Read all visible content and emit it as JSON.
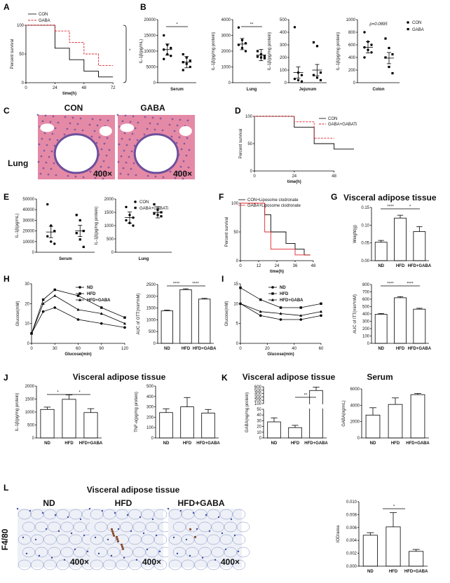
{
  "panels": {
    "A": {
      "letter": "A",
      "xlabel": "time(h)",
      "ylabel": "Percent survival",
      "legend": [
        "CON",
        "GABA"
      ],
      "star": "*",
      "xticks": [
        "0",
        "24",
        "48",
        "72"
      ],
      "yticks": [
        "0",
        "50",
        "100"
      ]
    },
    "B": {
      "letter": "B",
      "legend": [
        "CON",
        "GABA"
      ],
      "sub": [
        {
          "ylabel": "IL-1β(pg/mL)",
          "cat": "Serum",
          "yticks": [
            "0",
            "5000",
            "10000",
            "15000",
            "20000"
          ],
          "sig": "*"
        },
        {
          "ylabel": "IL-1β(pg/mg protein)",
          "cat": "Lung",
          "yticks": [
            "0",
            "1000",
            "2000",
            "3000",
            "4000"
          ],
          "sig": "**"
        },
        {
          "ylabel": "IL-1β(pg/mg protein)",
          "cat": "Jejunum",
          "yticks": [
            "0",
            "100",
            "200",
            "300",
            "400",
            "500"
          ],
          "sig": ""
        },
        {
          "ylabel": "IL-1β(pg/mg protein)",
          "cat": "Colon",
          "yticks": [
            "0",
            "200",
            "400",
            "600",
            "800",
            "1000"
          ],
          "sig": "p=0.0895"
        }
      ]
    },
    "C": {
      "letter": "C",
      "labels": [
        "CON",
        "GABA"
      ],
      "row": "Lung",
      "mag": "400×"
    },
    "D": {
      "letter": "D",
      "xlabel": "time(h)",
      "ylabel": "Percent survival",
      "legend": [
        "CON",
        "GABA+GABATi"
      ],
      "xticks": [
        "0",
        "24",
        "48"
      ],
      "yticks": [
        "0",
        "50",
        "100"
      ]
    },
    "E": {
      "letter": "E",
      "legend": [
        "CON",
        "GABA+GABATi"
      ],
      "sub": [
        {
          "ylabel": "IL-1β(pg/mL)",
          "cat": "Serum",
          "yticks": [
            "0",
            "10000",
            "20000",
            "30000",
            "40000",
            "50000"
          ]
        },
        {
          "ylabel": "IL-1β(pg/mg protein)",
          "cat": "Lung",
          "yticks": [
            "0",
            "500",
            "1000",
            "1500",
            "2000"
          ]
        }
      ]
    },
    "F": {
      "letter": "F",
      "xlabel": "time(h)",
      "ylabel": "Percent survival",
      "legend": [
        "CON+Liposome clodronate",
        "GABA+Liposome clodronate"
      ],
      "xticks": [
        "0",
        "12",
        "24",
        "36",
        "48"
      ],
      "yticks": [
        "0",
        "50",
        "100"
      ]
    },
    "G": {
      "letter": "G",
      "title": "Visceral adipose tissue",
      "ylabel": "Weight(g)",
      "sig": [
        "****",
        "*"
      ],
      "yticks": [
        "0.00",
        "0.05",
        "0.10",
        "0.15"
      ]
    },
    "H": {
      "letter": "H",
      "xlabel": "Glucose(min)",
      "ylabel": "Glucose(mM)",
      "legend": [
        "ND",
        "HFD",
        "HFD+GABA"
      ],
      "xticks": [
        "0",
        "30",
        "60",
        "90",
        "120"
      ],
      "yticks": [
        "0",
        "10",
        "20",
        "30"
      ],
      "bar_ylabel": "AUC of GTT(min*mM)",
      "bar_yticks": [
        "0",
        "500",
        "1000",
        "1500",
        "2000",
        "2500"
      ],
      "sig": [
        "****",
        "****"
      ]
    },
    "I": {
      "letter": "I",
      "xlabel": "Glucose(min)",
      "ylabel": "Glucose(mM)",
      "legend": [
        "ND",
        "HFD",
        "HFD+GABA"
      ],
      "xticks": [
        "0",
        "20",
        "40",
        "60"
      ],
      "yticks": [
        "0",
        "5",
        "10",
        "15"
      ],
      "bar_ylabel": "AUC of ITT(min*mM)",
      "bar_yticks": [
        "0",
        "100",
        "200",
        "300",
        "400",
        "500",
        "600",
        "700",
        "800"
      ],
      "sig": [
        "****",
        "****"
      ]
    },
    "J": {
      "letter": "J",
      "title": "Visceral adipose tissue",
      "sub": [
        {
          "ylabel": "IL-1β(pg/mg protein)",
          "yticks": [
            "0",
            "500",
            "1000",
            "1500",
            "2000"
          ],
          "sig": [
            "*",
            "*"
          ]
        },
        {
          "ylabel": "TNF-α(pg/mg protein)",
          "yticks": [
            "0",
            "100",
            "200",
            "300",
            "400",
            "500"
          ],
          "sig": []
        }
      ]
    },
    "K": {
      "letter": "K",
      "title": "Visceral adipose tissue",
      "title2": "Serum",
      "sub": [
        {
          "ylabel": "GABA(ng/mg protein)",
          "yticks": [
            "0",
            "10",
            "20",
            "30",
            "40",
            "50",
            "100",
            "200",
            "300",
            "400",
            "500",
            "600"
          ],
          "sig": [
            "**"
          ]
        },
        {
          "ylabel": "GABA(ng/mL)",
          "yticks": [
            "0",
            "2000",
            "4000",
            "6000"
          ],
          "sig": []
        }
      ]
    },
    "L": {
      "letter": "L",
      "title": "Visceral adipose tissue",
      "row": "F4/80",
      "labels": [
        "ND",
        "HFD",
        "HFD+GABA"
      ],
      "mag": "400×",
      "ylabel": "IOD/area",
      "yticks": [
        "0.000",
        "0.002",
        "0.004",
        "0.006",
        "0.008",
        "0.010"
      ],
      "sig": "*"
    }
  },
  "groups3": [
    "ND",
    "HFD",
    "HFD+GABA"
  ],
  "colors": {
    "con": "#000000",
    "gaba": "#e0262b",
    "he_pink": "#e58aa6",
    "he_purple": "#6d4f9c",
    "ihc_bg": "#eef0f7",
    "ihc_blue": "#7c8fc3",
    "ihc_brown": "#8a4a2a"
  },
  "chart_data": [
    {
      "type": "line",
      "panel": "A",
      "title": "",
      "xlabel": "time(h)",
      "ylabel": "Percent survival",
      "ylim": [
        0,
        100
      ],
      "xlim": [
        0,
        80
      ],
      "series": [
        {
          "name": "CON",
          "x": [
            0,
            24,
            36,
            48,
            60,
            72
          ],
          "values": [
            100,
            60,
            40,
            20,
            10,
            10
          ]
        },
        {
          "name": "GABA",
          "x": [
            0,
            24,
            36,
            48,
            60,
            72
          ],
          "values": [
            100,
            90,
            70,
            50,
            30,
            30
          ]
        }
      ]
    },
    {
      "type": "scatter",
      "panel": "B-Serum",
      "categories": [
        "CON",
        "GABA"
      ],
      "means": [
        10500,
        6500
      ],
      "ylim": [
        0,
        20000
      ],
      "points": [
        [
          15000,
          12000,
          11000,
          10500,
          9000,
          8500,
          7500
        ],
        [
          9000,
          8000,
          7000,
          6500,
          6000,
          5000,
          4000
        ]
      ]
    },
    {
      "type": "scatter",
      "panel": "B-Lung",
      "categories": [
        "CON",
        "GABA"
      ],
      "means": [
        2450,
        1750
      ],
      "ylim": [
        0,
        4000
      ],
      "points": [
        [
          3500,
          2700,
          2500,
          2400,
          2200,
          2000
        ],
        [
          2000,
          1800,
          1700,
          1650,
          1600,
          1550
        ]
      ]
    },
    {
      "type": "scatter",
      "panel": "B-Jejunum",
      "categories": [
        "CON",
        "GABA"
      ],
      "means": [
        80,
        100
      ],
      "ylim": [
        0,
        500
      ],
      "points": [
        [
          440,
          80,
          60,
          30,
          20,
          10
        ],
        [
          320,
          290,
          80,
          60,
          40,
          20
        ]
      ]
    },
    {
      "type": "scatter",
      "panel": "B-Colon",
      "categories": [
        "CON",
        "GABA"
      ],
      "means": [
        560,
        390
      ],
      "ylim": [
        0,
        1000
      ],
      "points": [
        [
          800,
          650,
          600,
          560,
          520,
          480,
          400
        ],
        [
          700,
          550,
          450,
          400,
          250,
          150
        ]
      ]
    },
    {
      "type": "line",
      "panel": "D",
      "xlabel": "time(h)",
      "ylabel": "Percent survival",
      "ylim": [
        0,
        100
      ],
      "series": [
        {
          "name": "CON",
          "x": [
            0,
            24,
            36,
            48,
            60
          ],
          "values": [
            100,
            80,
            50,
            40,
            40
          ]
        },
        {
          "name": "GABA+GABATi",
          "x": [
            0,
            24,
            36,
            48
          ],
          "values": [
            100,
            90,
            60,
            60
          ]
        }
      ]
    },
    {
      "type": "scatter",
      "panel": "E-Serum",
      "categories": [
        "CON",
        "GABA+GABATi"
      ],
      "means": [
        19000,
        20000
      ],
      "ylim": [
        0,
        50000
      ],
      "points": [
        [
          45000,
          25000,
          20000,
          15000,
          10000,
          8000
        ],
        [
          35000,
          30000,
          20000,
          18000,
          12000,
          5000
        ]
      ]
    },
    {
      "type": "scatter",
      "panel": "E-Lung",
      "categories": [
        "CON",
        "GABA+GABATi"
      ],
      "means": [
        1300,
        1500
      ],
      "ylim": [
        0,
        2000
      ],
      "points": [
        [
          1700,
          1400,
          1300,
          1200,
          1100,
          1000
        ],
        [
          1800,
          1600,
          1500,
          1450,
          1400,
          1350
        ]
      ]
    },
    {
      "type": "line",
      "panel": "F",
      "xlabel": "time(h)",
      "ylabel": "Percent survival",
      "ylim": [
        0,
        100
      ],
      "series": [
        {
          "name": "CON+Liposome clodronate",
          "x": [
            0,
            16,
            20,
            24,
            30,
            36,
            42,
            46
          ],
          "values": [
            100,
            80,
            50,
            50,
            30,
            20,
            10,
            10
          ]
        },
        {
          "name": "GABA+Liposome clodronate",
          "x": [
            0,
            16,
            20,
            24,
            36,
            46
          ],
          "values": [
            100,
            50,
            20,
            20,
            10,
            10
          ]
        }
      ]
    },
    {
      "type": "bar",
      "panel": "G",
      "categories": [
        "ND",
        "HFD",
        "HFD+GABA"
      ],
      "values": [
        0.052,
        0.12,
        0.082
      ],
      "errors": [
        0.005,
        0.008,
        0.014
      ],
      "ylim": [
        0,
        0.15
      ]
    },
    {
      "type": "line",
      "panel": "H",
      "xlabel": "Glucose(min)",
      "ylabel": "Glucose(mM)",
      "ylim": [
        0,
        30
      ],
      "series": [
        {
          "name": "ND",
          "x": [
            0,
            15,
            30,
            60,
            90,
            120
          ],
          "values": [
            5,
            16,
            18,
            12,
            10,
            8
          ]
        },
        {
          "name": "HFD",
          "x": [
            0,
            15,
            30,
            60,
            90,
            120
          ],
          "values": [
            5,
            22,
            27,
            24,
            18,
            13
          ]
        },
        {
          "name": "HFD+GABA",
          "x": [
            0,
            15,
            30,
            60,
            90,
            120
          ],
          "values": [
            5,
            20,
            24,
            17,
            15,
            10
          ]
        }
      ]
    },
    {
      "type": "bar",
      "panel": "H-AUC",
      "categories": [
        "ND",
        "HFD",
        "HFD+GABA"
      ],
      "values": [
        1380,
        2280,
        1880
      ],
      "errors": [
        30,
        40,
        30
      ],
      "ylim": [
        0,
        2500
      ]
    },
    {
      "type": "line",
      "panel": "I",
      "xlabel": "Glucose(min)",
      "ylabel": "Glucose(mM)",
      "ylim": [
        0,
        15
      ],
      "series": [
        {
          "name": "ND",
          "x": [
            0,
            15,
            30,
            45,
            60
          ],
          "values": [
            10,
            7,
            6,
            6,
            7
          ]
        },
        {
          "name": "HFD",
          "x": [
            0,
            15,
            30,
            45,
            60
          ],
          "values": [
            14,
            11,
            9,
            9,
            10
          ]
        },
        {
          "name": "HFD+GABA",
          "x": [
            0,
            15,
            30,
            45,
            60
          ],
          "values": [
            10,
            8,
            7.5,
            7,
            8
          ]
        }
      ]
    },
    {
      "type": "bar",
      "panel": "I-AUC",
      "categories": [
        "ND",
        "HFD",
        "HFD+GABA"
      ],
      "values": [
        395,
        620,
        465
      ],
      "errors": [
        10,
        15,
        12
      ],
      "ylim": [
        0,
        800
      ]
    },
    {
      "type": "bar",
      "panel": "J-IL1b",
      "categories": [
        "ND",
        "HFD",
        "HFD+GABA"
      ],
      "values": [
        1100,
        1490,
        980
      ],
      "errors": [
        90,
        170,
        150
      ],
      "ylim": [
        0,
        2000
      ]
    },
    {
      "type": "bar",
      "panel": "J-TNF",
      "categories": [
        "ND",
        "HFD",
        "HFD+GABA"
      ],
      "values": [
        245,
        300,
        240
      ],
      "errors": [
        35,
        90,
        35
      ],
      "ylim": [
        0,
        500
      ]
    },
    {
      "type": "bar",
      "panel": "K-VAT",
      "categories": [
        "ND",
        "HFD",
        "HFD+GABA"
      ],
      "values": [
        28,
        18,
        490
      ],
      "errors": [
        7,
        4,
        100
      ],
      "ylim": [
        0,
        600
      ]
    },
    {
      "type": "bar",
      "panel": "K-Serum",
      "categories": [
        "ND",
        "HFD",
        "HFD+GABA"
      ],
      "values": [
        2800,
        4100,
        5300
      ],
      "errors": [
        900,
        800,
        150
      ],
      "ylim": [
        0,
        6000
      ]
    },
    {
      "type": "bar",
      "panel": "L-IOD",
      "categories": [
        "ND",
        "HFD",
        "HFD+GABA"
      ],
      "values": [
        0.0048,
        0.0061,
        0.0023
      ],
      "errors": [
        0.0004,
        0.0022,
        0.0003
      ],
      "ylim": [
        0,
        0.01
      ]
    }
  ]
}
